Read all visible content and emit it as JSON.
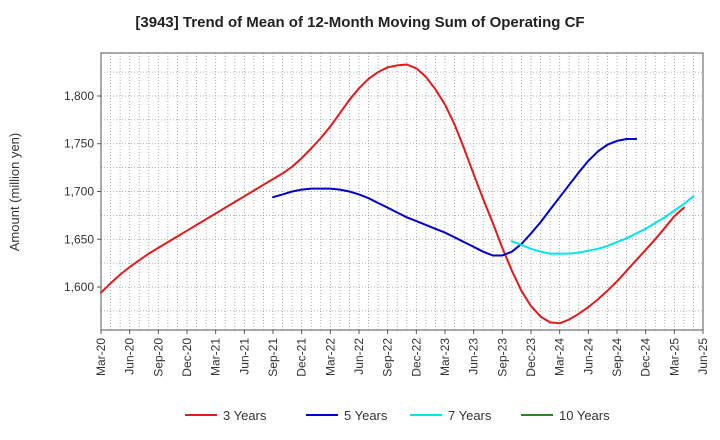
{
  "chart_data": {
    "type": "line",
    "title": "[3943]  Trend of Mean of 12-Month Moving Sum of Operating CF",
    "xlabel": "",
    "ylabel": "Amount (million yen)",
    "ylim": [
      1555,
      1845
    ],
    "yticks": [
      1600,
      1650,
      1700,
      1750,
      1800
    ],
    "ytick_labels": [
      "1,600",
      "1,650",
      "1,700",
      "1,750",
      "1,800"
    ],
    "x_tick_labels": [
      "Mar-20",
      "Jun-20",
      "Sep-20",
      "Dec-20",
      "Mar-21",
      "Jun-21",
      "Sep-21",
      "Dec-21",
      "Mar-22",
      "Jun-22",
      "Sep-22",
      "Dec-22",
      "Mar-23",
      "Jun-23",
      "Sep-23",
      "Dec-23",
      "Mar-24",
      "Jun-24",
      "Sep-24",
      "Dec-24",
      "Mar-25",
      "Jun-25"
    ],
    "x_start": "Mar-20",
    "x_end": "Jun-25",
    "months_total": 63,
    "grid": true,
    "legend_position": "bottom",
    "series": [
      {
        "name": "3 Years",
        "color": "#e31a1c",
        "start_month_index": 0,
        "values": [
          1594,
          1604,
          1613,
          1621,
          1628,
          1635,
          1641,
          1647,
          1653,
          1659,
          1665,
          1671,
          1677,
          1683,
          1689,
          1695,
          1701,
          1707,
          1713,
          1719,
          1726,
          1735,
          1745,
          1756,
          1768,
          1782,
          1796,
          1808,
          1818,
          1825,
          1830,
          1832,
          1833,
          1829,
          1820,
          1807,
          1791,
          1770,
          1745,
          1718,
          1692,
          1667,
          1641,
          1617,
          1596,
          1580,
          1569,
          1563,
          1562,
          1566,
          1572,
          1579,
          1587,
          1596,
          1606,
          1617,
          1628,
          1639,
          1650,
          1662,
          1674,
          1683
        ]
      },
      {
        "name": "5 Years",
        "color": "#0000cc",
        "start_month_index": 18,
        "values": [
          1694,
          1697,
          1700,
          1702,
          1703,
          1703,
          1703,
          1702,
          1700,
          1697,
          1693,
          1688,
          1683,
          1678,
          1673,
          1669,
          1665,
          1661,
          1657,
          1652,
          1647,
          1642,
          1637,
          1633,
          1633,
          1637,
          1645,
          1656,
          1668,
          1681,
          1694,
          1707,
          1720,
          1732,
          1742,
          1749,
          1753,
          1755,
          1755
        ]
      },
      {
        "name": "7 Years",
        "color": "#00e5ee",
        "start_month_index": 43,
        "values": [
          1648,
          1644,
          1640,
          1637,
          1635,
          1635,
          1635,
          1636,
          1638,
          1640,
          1643,
          1647,
          1651,
          1656,
          1661,
          1667,
          1673,
          1680,
          1687,
          1695
        ]
      },
      {
        "name": "10 Years",
        "color": "#228b22",
        "start_month_index": 0,
        "values": []
      }
    ]
  }
}
